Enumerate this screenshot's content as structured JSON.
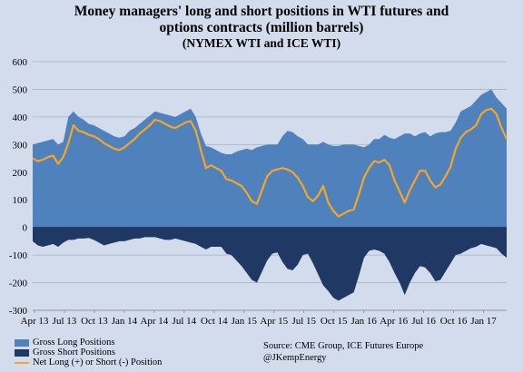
{
  "chart_data": {
    "type": "area",
    "title": "Money managers' long and short positions in WTI futures and options contracts (million barrels)",
    "title_lines": [
      "Money managers' long and short positions in WTI futures and",
      "options contracts (million barrels)"
    ],
    "subtitle": "(NYMEX WTI and ICE WTI)",
    "ylim": [
      -300,
      600
    ],
    "y_ticks": [
      -300,
      -200,
      -100,
      0,
      100,
      200,
      300,
      400,
      500,
      600
    ],
    "x_tick_labels": [
      "Apr 13",
      "Jul 13",
      "Oct 13",
      "Jan 14",
      "Apr 14",
      "Jul 14",
      "Oct 14",
      "Jan 15",
      "Apr 15",
      "Jul 15",
      "Oct 15",
      "Jan 16",
      "Apr 16",
      "Jul 16",
      "Oct 16",
      "Jan 17"
    ],
    "grid": true,
    "legend_position": "bottom-left",
    "x_start": "2013-04",
    "x_end": "2017-03",
    "series": [
      {
        "name": "Gross Long Positions",
        "color": "#4f81bd",
        "values": [
          300,
          305,
          310,
          315,
          320,
          300,
          310,
          400,
          420,
          400,
          390,
          375,
          370,
          360,
          350,
          340,
          330,
          325,
          330,
          350,
          360,
          375,
          390,
          405,
          420,
          415,
          410,
          405,
          400,
          410,
          420,
          430,
          400,
          340,
          295,
          290,
          280,
          270,
          265,
          265,
          275,
          280,
          285,
          280,
          290,
          295,
          300,
          300,
          300,
          330,
          350,
          345,
          330,
          320,
          300,
          300,
          300,
          310,
          300,
          295,
          295,
          300,
          300,
          300,
          295,
          290,
          300,
          320,
          320,
          335,
          325,
          320,
          330,
          340,
          340,
          330,
          340,
          345,
          330,
          340,
          345,
          345,
          350,
          380,
          420,
          430,
          440,
          460,
          480,
          490,
          500,
          470,
          450,
          430
        ]
      },
      {
        "name": "Gross Short Positions",
        "color": "#1f3864",
        "values": [
          -50,
          -65,
          -70,
          -65,
          -60,
          -70,
          -55,
          -45,
          -45,
          -40,
          -40,
          -38,
          -45,
          -55,
          -65,
          -60,
          -55,
          -50,
          -50,
          -45,
          -40,
          -40,
          -35,
          -35,
          -35,
          -40,
          -45,
          -45,
          -40,
          -45,
          -50,
          -55,
          -60,
          -70,
          -80,
          -70,
          -70,
          -70,
          -95,
          -100,
          -120,
          -140,
          -165,
          -190,
          -200,
          -160,
          -120,
          -95,
          -90,
          -125,
          -150,
          -155,
          -135,
          -100,
          -95,
          -130,
          -170,
          -210,
          -230,
          -255,
          -265,
          -255,
          -245,
          -235,
          -175,
          -110,
          -85,
          -80,
          -85,
          -95,
          -125,
          -165,
          -200,
          -245,
          -200,
          -165,
          -140,
          -145,
          -165,
          -195,
          -190,
          -160,
          -130,
          -100,
          -95,
          -85,
          -75,
          -70,
          -60,
          -65,
          -70,
          -75,
          -95,
          -110
        ]
      },
      {
        "name": "Net Long (+) or Short (-) Position",
        "color": "#f5a623",
        "values": [
          250,
          240,
          245,
          255,
          260,
          230,
          255,
          305,
          370,
          350,
          345,
          335,
          330,
          320,
          305,
          295,
          285,
          280,
          290,
          305,
          320,
          340,
          355,
          370,
          390,
          385,
          375,
          365,
          360,
          370,
          380,
          385,
          350,
          280,
          215,
          225,
          215,
          205,
          175,
          170,
          160,
          150,
          125,
          95,
          85,
          135,
          185,
          205,
          210,
          215,
          210,
          200,
          180,
          150,
          110,
          95,
          115,
          150,
          90,
          60,
          40,
          50,
          60,
          65,
          120,
          180,
          215,
          240,
          235,
          245,
          225,
          170,
          130,
          90,
          135,
          170,
          205,
          205,
          170,
          145,
          155,
          185,
          220,
          285,
          325,
          345,
          355,
          370,
          410,
          425,
          430,
          410,
          360,
          320
        ]
      }
    ],
    "legend": [
      {
        "label": "Gross Long Positions",
        "color": "#4f81bd",
        "kind": "box"
      },
      {
        "label": "Gross Short Positions",
        "color": "#1f3864",
        "kind": "box"
      },
      {
        "label": "Net Long (+) or Short (-) Position",
        "color": "#f5a623",
        "kind": "line"
      }
    ],
    "source_lines": [
      "Source:  CME Group, ICE Futures Europe",
      "@JKempEnergy"
    ]
  }
}
